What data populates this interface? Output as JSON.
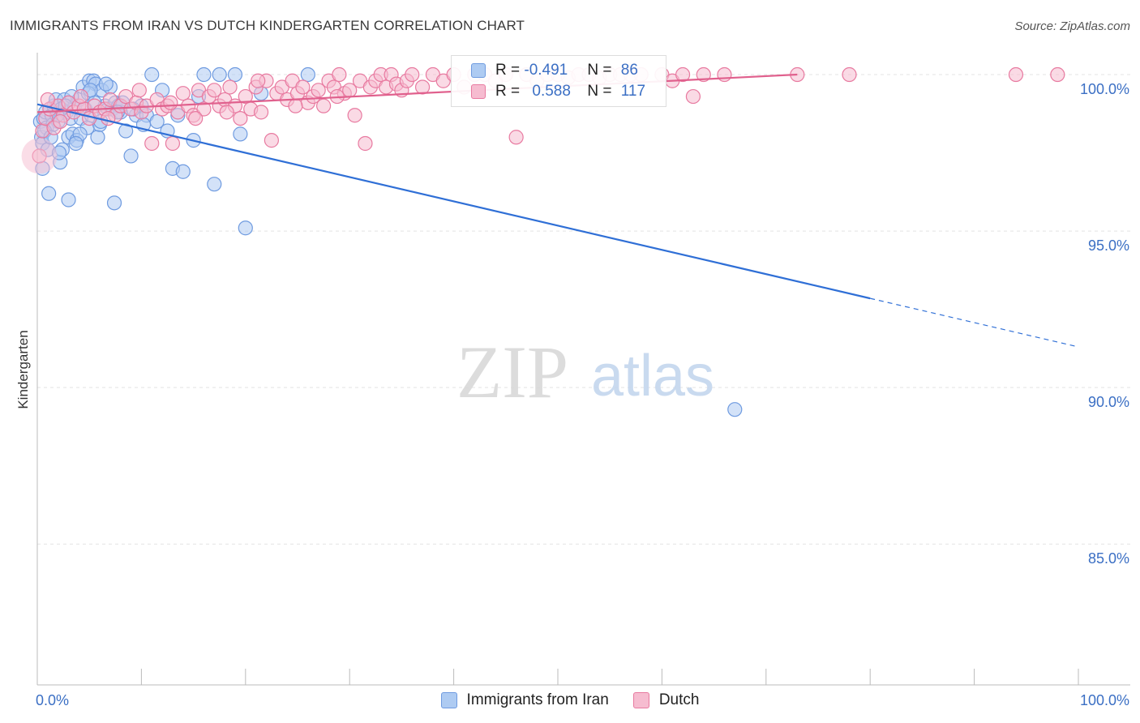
{
  "header": {
    "title": "IMMIGRANTS FROM IRAN VS DUTCH KINDERGARTEN CORRELATION CHART",
    "source": "Source: ZipAtlas.com"
  },
  "watermark": {
    "zip": "ZIP",
    "atlas": "atlas"
  },
  "legend": {
    "r_label": "R = ",
    "n_label": "N = ",
    "series": [
      {
        "name": "Immigrants from Iran",
        "r": "-0.491",
        "n": "86",
        "color": "#6f9be0",
        "fill": "#aecbf2"
      },
      {
        "name": "Dutch",
        "r": "0.588",
        "n": "117",
        "color": "#e87aa0",
        "fill": "#f6bcd0"
      }
    ]
  },
  "chart_data": {
    "type": "scatter",
    "title": "IMMIGRANTS FROM IRAN VS DUTCH KINDERGARTEN CORRELATION CHART",
    "xlabel": "",
    "ylabel": "Kindergarten",
    "xlim": [
      0,
      100
    ],
    "ylim": [
      80.5,
      100.7
    ],
    "y_ticks": [
      100.0,
      95.0,
      90.0,
      85.0
    ],
    "y_tick_labels": [
      "100.0%",
      "95.0%",
      "90.0%",
      "85.0%"
    ],
    "x_tick_labels": [
      "0.0%",
      "100.0%"
    ],
    "grid": true,
    "series": [
      {
        "name": "Immigrants from Iran",
        "color": "#6f9be0",
        "trend": {
          "x0": 0,
          "y0": 99.05,
          "x1": 80,
          "y1": 92.85,
          "dash_to_x": 100,
          "dash_to_y": 91.3
        },
        "points": [
          [
            0.3,
            98.5
          ],
          [
            0.4,
            98.0
          ],
          [
            0.5,
            97.8
          ],
          [
            0.6,
            98.6
          ],
          [
            0.8,
            98.8
          ],
          [
            0.9,
            98.3
          ],
          [
            1.0,
            97.6
          ],
          [
            1.2,
            98.9
          ],
          [
            1.4,
            98.7
          ],
          [
            1.6,
            99.0
          ],
          [
            1.8,
            99.2
          ],
          [
            2.0,
            98.5
          ],
          [
            2.2,
            97.2
          ],
          [
            2.4,
            97.6
          ],
          [
            2.6,
            99.2
          ],
          [
            2.8,
            98.8
          ],
          [
            3.0,
            98.0
          ],
          [
            3.2,
            98.6
          ],
          [
            3.4,
            98.1
          ],
          [
            3.6,
            99.0
          ],
          [
            3.8,
            97.9
          ],
          [
            4.0,
            99.2
          ],
          [
            4.2,
            98.6
          ],
          [
            4.4,
            99.6
          ],
          [
            4.6,
            98.9
          ],
          [
            4.8,
            98.3
          ],
          [
            5.0,
            99.8
          ],
          [
            5.2,
            98.7
          ],
          [
            5.4,
            99.8
          ],
          [
            5.6,
            99.7
          ],
          [
            5.8,
            98.0
          ],
          [
            6.0,
            98.4
          ],
          [
            6.2,
            99.5
          ],
          [
            6.5,
            99.0
          ],
          [
            6.8,
            98.9
          ],
          [
            7.0,
            99.6
          ],
          [
            7.2,
            98.9
          ],
          [
            7.5,
            99.1
          ],
          [
            7.8,
            99.0
          ],
          [
            8.0,
            98.8
          ],
          [
            8.5,
            98.2
          ],
          [
            9.0,
            97.4
          ],
          [
            9.5,
            98.7
          ],
          [
            10.0,
            99.0
          ],
          [
            10.5,
            98.7
          ],
          [
            11.0,
            100.0
          ],
          [
            11.5,
            98.5
          ],
          [
            12.0,
            99.5
          ],
          [
            12.5,
            98.2
          ],
          [
            13.0,
            97.0
          ],
          [
            13.5,
            98.7
          ],
          [
            14.0,
            96.9
          ],
          [
            15.0,
            97.9
          ],
          [
            15.5,
            99.3
          ],
          [
            16.0,
            100.0
          ],
          [
            17.0,
            96.5
          ],
          [
            17.5,
            100.0
          ],
          [
            19.0,
            100.0
          ],
          [
            19.5,
            98.1
          ],
          [
            20.0,
            95.1
          ],
          [
            21.5,
            99.4
          ],
          [
            26.0,
            100.0
          ],
          [
            1.1,
            96.2
          ],
          [
            3.0,
            96.0
          ],
          [
            7.4,
            95.9
          ],
          [
            67.0,
            89.3
          ],
          [
            1.5,
            98.4
          ],
          [
            2.3,
            98.9
          ],
          [
            4.9,
            99.4
          ],
          [
            6.1,
            98.5
          ],
          [
            3.3,
            99.3
          ],
          [
            2.1,
            97.5
          ],
          [
            5.5,
            99.1
          ],
          [
            0.7,
            98.2
          ],
          [
            1.9,
            98.7
          ],
          [
            4.1,
            98.1
          ],
          [
            8.2,
            99.1
          ],
          [
            9.2,
            98.9
          ],
          [
            6.6,
            99.7
          ],
          [
            3.7,
            97.8
          ],
          [
            2.7,
            99.0
          ],
          [
            1.3,
            98.0
          ],
          [
            5.1,
            99.5
          ],
          [
            7.7,
            98.8
          ],
          [
            0.5,
            97.0
          ],
          [
            10.2,
            98.4
          ]
        ]
      },
      {
        "name": "Dutch",
        "color": "#e87aa0",
        "trend": {
          "x0": 0,
          "y0": 98.8,
          "x1": 73,
          "y1": 100.0
        },
        "points": [
          [
            0.2,
            97.4
          ],
          [
            0.5,
            98.2
          ],
          [
            0.8,
            98.6
          ],
          [
            1.2,
            98.9
          ],
          [
            1.6,
            98.3
          ],
          [
            2.0,
            99.0
          ],
          [
            2.5,
            98.7
          ],
          [
            3.0,
            99.1
          ],
          [
            3.5,
            98.8
          ],
          [
            4.0,
            99.0
          ],
          [
            4.5,
            98.9
          ],
          [
            5.0,
            98.6
          ],
          [
            5.5,
            99.0
          ],
          [
            6.0,
            98.8
          ],
          [
            6.5,
            98.9
          ],
          [
            7.0,
            99.2
          ],
          [
            7.5,
            98.7
          ],
          [
            8.0,
            99.0
          ],
          [
            8.5,
            99.3
          ],
          [
            9.0,
            98.9
          ],
          [
            9.5,
            99.1
          ],
          [
            10.0,
            98.8
          ],
          [
            10.5,
            99.0
          ],
          [
            11.0,
            97.8
          ],
          [
            11.5,
            99.2
          ],
          [
            12.0,
            98.9
          ],
          [
            12.5,
            99.0
          ],
          [
            13.0,
            97.8
          ],
          [
            13.5,
            98.8
          ],
          [
            14.0,
            99.4
          ],
          [
            14.5,
            99.0
          ],
          [
            15.0,
            98.7
          ],
          [
            15.5,
            99.5
          ],
          [
            16.0,
            98.9
          ],
          [
            16.5,
            99.3
          ],
          [
            17.0,
            99.5
          ],
          [
            17.5,
            99.0
          ],
          [
            18.0,
            99.2
          ],
          [
            18.5,
            99.6
          ],
          [
            19.0,
            99.0
          ],
          [
            19.5,
            98.6
          ],
          [
            20.0,
            99.3
          ],
          [
            20.5,
            98.9
          ],
          [
            21.0,
            99.6
          ],
          [
            21.5,
            98.8
          ],
          [
            22.0,
            99.8
          ],
          [
            22.5,
            97.9
          ],
          [
            23.0,
            99.4
          ],
          [
            23.5,
            99.6
          ],
          [
            24.0,
            99.2
          ],
          [
            24.5,
            99.8
          ],
          [
            25.0,
            99.4
          ],
          [
            25.5,
            99.6
          ],
          [
            26.0,
            99.1
          ],
          [
            26.5,
            99.3
          ],
          [
            27.0,
            99.5
          ],
          [
            27.5,
            99.0
          ],
          [
            28.0,
            99.8
          ],
          [
            28.5,
            99.6
          ],
          [
            29.0,
            100.0
          ],
          [
            29.5,
            99.4
          ],
          [
            30.0,
            99.5
          ],
          [
            30.5,
            98.7
          ],
          [
            31.0,
            99.8
          ],
          [
            31.5,
            97.8
          ],
          [
            32.0,
            99.6
          ],
          [
            32.5,
            99.8
          ],
          [
            33.0,
            100.0
          ],
          [
            33.5,
            99.6
          ],
          [
            34.0,
            100.0
          ],
          [
            34.5,
            99.7
          ],
          [
            35.0,
            99.5
          ],
          [
            35.5,
            99.8
          ],
          [
            36.0,
            100.0
          ],
          [
            37.0,
            99.6
          ],
          [
            38.0,
            100.0
          ],
          [
            39.0,
            99.8
          ],
          [
            40.0,
            100.0
          ],
          [
            41.0,
            99.6
          ],
          [
            42.0,
            100.0
          ],
          [
            43.0,
            100.0
          ],
          [
            44.0,
            99.8
          ],
          [
            45.0,
            100.0
          ],
          [
            46.0,
            98.0
          ],
          [
            47.0,
            100.0
          ],
          [
            48.0,
            99.8
          ],
          [
            49.0,
            100.0
          ],
          [
            50.0,
            100.0
          ],
          [
            51.0,
            99.9
          ],
          [
            52.0,
            100.0
          ],
          [
            53.0,
            100.0
          ],
          [
            54.0,
            99.9
          ],
          [
            55.0,
            100.0
          ],
          [
            56.0,
            100.0
          ],
          [
            57.0,
            100.0
          ],
          [
            58.0,
            100.0
          ],
          [
            60.0,
            100.0
          ],
          [
            61.0,
            99.8
          ],
          [
            62.0,
            100.0
          ],
          [
            63.0,
            99.3
          ],
          [
            64.0,
            100.0
          ],
          [
            66.0,
            100.0
          ],
          [
            73.0,
            100.0
          ],
          [
            78.0,
            100.0
          ],
          [
            94.0,
            100.0
          ],
          [
            98.0,
            100.0
          ],
          [
            1.0,
            99.2
          ],
          [
            2.2,
            98.5
          ],
          [
            4.2,
            99.3
          ],
          [
            6.8,
            98.6
          ],
          [
            9.8,
            99.5
          ],
          [
            12.8,
            99.1
          ],
          [
            15.2,
            98.6
          ],
          [
            18.2,
            98.8
          ],
          [
            21.2,
            99.8
          ],
          [
            24.8,
            99.0
          ],
          [
            28.8,
            99.3
          ]
        ]
      }
    ]
  }
}
